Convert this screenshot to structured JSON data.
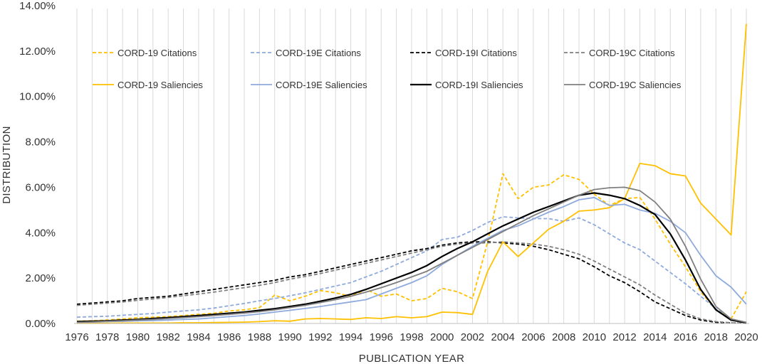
{
  "chart_data": {
    "type": "line",
    "title": "",
    "xlabel": "PUBLICATION YEAR",
    "ylabel": "DISTRIBUTION",
    "ylim": [
      0,
      14
    ],
    "y_tick_labels": [
      "0.00%",
      "2.00%",
      "4.00%",
      "6.00%",
      "8.00%",
      "10.00%",
      "12.00%",
      "14.00%"
    ],
    "x_tick_labels": [
      "1976",
      "1978",
      "1980",
      "1982",
      "1984",
      "1986",
      "1988",
      "1990",
      "1992",
      "1994",
      "1996",
      "1998",
      "2000",
      "2002",
      "2004",
      "2006",
      "2008",
      "2010",
      "2012",
      "2014",
      "2016",
      "2018",
      "2020"
    ],
    "x": [
      1976,
      1977,
      1978,
      1979,
      1980,
      1981,
      1982,
      1983,
      1984,
      1985,
      1986,
      1987,
      1988,
      1989,
      1990,
      1991,
      1992,
      1993,
      1994,
      1995,
      1996,
      1997,
      1998,
      1999,
      2000,
      2001,
      2002,
      2003,
      2004,
      2005,
      2006,
      2007,
      2008,
      2009,
      2010,
      2011,
      2012,
      2013,
      2014,
      2015,
      2016,
      2017,
      2018,
      2019,
      2020
    ],
    "grid": "vertical lines at each year",
    "legend_position": "top",
    "series": [
      {
        "name": "CORD-19 Citations",
        "color": "#FFC000",
        "dash": "dashed",
        "values": [
          0.1,
          0.12,
          0.15,
          0.2,
          0.25,
          0.28,
          0.3,
          0.35,
          0.4,
          0.45,
          0.55,
          0.6,
          0.7,
          1.25,
          1.0,
          1.2,
          1.45,
          1.35,
          1.2,
          1.5,
          1.2,
          1.3,
          1.0,
          1.1,
          1.55,
          1.4,
          1.1,
          3.6,
          6.6,
          5.5,
          6.0,
          6.1,
          6.55,
          6.35,
          5.7,
          5.2,
          5.5,
          5.55,
          4.6,
          3.5,
          2.5,
          1.4,
          0.6,
          0.2,
          1.4
        ]
      },
      {
        "name": "CORD-19E Citations",
        "color": "#8FAADC",
        "dash": "dashed",
        "values": [
          0.28,
          0.3,
          0.32,
          0.36,
          0.4,
          0.44,
          0.5,
          0.55,
          0.6,
          0.68,
          0.78,
          0.88,
          1.0,
          1.1,
          1.22,
          1.35,
          1.5,
          1.65,
          1.8,
          2.05,
          2.3,
          2.6,
          2.9,
          3.2,
          3.7,
          3.8,
          4.1,
          4.45,
          4.7,
          4.65,
          4.62,
          4.62,
          4.5,
          4.65,
          4.35,
          3.95,
          3.55,
          3.25,
          2.75,
          2.25,
          1.75,
          1.2,
          0.65,
          0.2,
          0.05
        ]
      },
      {
        "name": "CORD-19I Citations",
        "color": "#000000",
        "dash": "dashed",
        "values": [
          0.85,
          0.9,
          0.95,
          1.0,
          1.1,
          1.15,
          1.2,
          1.3,
          1.4,
          1.5,
          1.6,
          1.7,
          1.8,
          1.9,
          2.05,
          2.15,
          2.3,
          2.45,
          2.6,
          2.75,
          2.9,
          3.05,
          3.2,
          3.3,
          3.45,
          3.55,
          3.6,
          3.6,
          3.55,
          3.5,
          3.4,
          3.25,
          3.05,
          2.85,
          2.5,
          2.1,
          1.8,
          1.4,
          0.95,
          0.65,
          0.35,
          0.15,
          0.05,
          0.02,
          0.01
        ]
      },
      {
        "name": "CORD-19C Citations",
        "color": "#7F7F7F",
        "dash": "dashed",
        "values": [
          0.8,
          0.85,
          0.9,
          0.95,
          1.02,
          1.08,
          1.15,
          1.22,
          1.3,
          1.38,
          1.48,
          1.58,
          1.68,
          1.8,
          1.95,
          2.07,
          2.2,
          2.35,
          2.5,
          2.65,
          2.8,
          2.95,
          3.1,
          3.25,
          3.4,
          3.5,
          3.55,
          3.55,
          3.6,
          3.55,
          3.5,
          3.4,
          3.25,
          3.05,
          2.75,
          2.4,
          2.05,
          1.7,
          1.25,
          0.85,
          0.45,
          0.2,
          0.08,
          0.03,
          0.01
        ]
      },
      {
        "name": "CORD-19 Saliencies",
        "color": "#FFC000",
        "dash": "solid",
        "values": [
          0.01,
          0.01,
          0.01,
          0.02,
          0.02,
          0.02,
          0.02,
          0.03,
          0.03,
          0.04,
          0.05,
          0.06,
          0.08,
          0.12,
          0.1,
          0.2,
          0.22,
          0.2,
          0.18,
          0.25,
          0.22,
          0.3,
          0.25,
          0.3,
          0.5,
          0.48,
          0.4,
          2.3,
          3.6,
          2.95,
          3.55,
          4.15,
          4.5,
          4.95,
          5.0,
          5.1,
          5.5,
          7.05,
          6.95,
          6.6,
          6.5,
          5.3,
          4.6,
          3.9,
          13.2
        ]
      },
      {
        "name": "CORD-19E Saliencies",
        "color": "#8FAADC",
        "dash": "solid",
        "values": [
          0.05,
          0.06,
          0.08,
          0.1,
          0.12,
          0.13,
          0.15,
          0.18,
          0.2,
          0.25,
          0.3,
          0.35,
          0.42,
          0.5,
          0.58,
          0.66,
          0.75,
          0.85,
          0.95,
          1.05,
          1.3,
          1.55,
          1.8,
          2.1,
          2.6,
          3.0,
          3.4,
          3.75,
          4.1,
          4.3,
          4.6,
          4.9,
          5.15,
          5.45,
          5.55,
          5.2,
          5.25,
          5.0,
          4.85,
          4.5,
          4.0,
          3.0,
          2.1,
          1.6,
          0.85
        ]
      },
      {
        "name": "CORD-19I Saliencies",
        "color": "#000000",
        "dash": "solid",
        "values": [
          0.08,
          0.1,
          0.12,
          0.15,
          0.18,
          0.22,
          0.26,
          0.3,
          0.35,
          0.4,
          0.45,
          0.5,
          0.58,
          0.65,
          0.75,
          0.85,
          0.98,
          1.12,
          1.28,
          1.5,
          1.75,
          2.0,
          2.25,
          2.55,
          2.95,
          3.3,
          3.6,
          3.95,
          4.3,
          4.6,
          4.9,
          5.15,
          5.4,
          5.65,
          5.75,
          5.65,
          5.5,
          5.2,
          4.8,
          3.95,
          2.8,
          1.5,
          0.6,
          0.15,
          0.03
        ]
      },
      {
        "name": "CORD-19C Saliencies",
        "color": "#7F7F7F",
        "dash": "solid",
        "values": [
          0.05,
          0.07,
          0.1,
          0.12,
          0.15,
          0.18,
          0.22,
          0.26,
          0.3,
          0.35,
          0.4,
          0.46,
          0.52,
          0.6,
          0.7,
          0.8,
          0.92,
          1.05,
          1.2,
          1.38,
          1.58,
          1.8,
          2.05,
          2.3,
          2.65,
          3.0,
          3.35,
          3.7,
          4.05,
          4.4,
          4.75,
          5.05,
          5.35,
          5.65,
          5.9,
          5.98,
          6.0,
          5.85,
          5.35,
          4.6,
          3.4,
          1.95,
          0.75,
          0.2,
          0.05
        ]
      }
    ]
  }
}
